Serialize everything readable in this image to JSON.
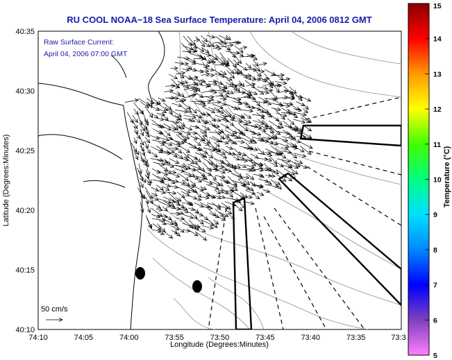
{
  "chart_data": {
    "type": "map",
    "title": "RU COOL  NOAA−18  Sea Surface Temperature:  April 04, 2006 0812 GMT",
    "annotation_lines": [
      "Raw Surface Current:",
      "April 04, 2006 07:00 GMT"
    ],
    "xlabel": "Longitude (Degrees:Minutes)",
    "ylabel": "Latitude (Degrees:Minutes)",
    "x_ticks": [
      "74:10",
      "74:05",
      "74:00",
      "73:55",
      "73:50",
      "73:45",
      "73:40",
      "73:35",
      "73:3"
    ],
    "y_ticks": [
      "40:35",
      "40:30",
      "40:25",
      "40:20",
      "40:15",
      "40:10"
    ],
    "xlim": [
      "74:10 W",
      "73:30 W"
    ],
    "ylim": [
      "40:10 N",
      "40:35 N"
    ],
    "scale_label": "50 cm/s",
    "colorbar": {
      "label": "Temperature (°C)",
      "ticks": [
        "5",
        "6",
        "7",
        "8",
        "9",
        "10",
        "11",
        "12",
        "13",
        "14",
        "15"
      ],
      "range": [
        5,
        15
      ],
      "colors": [
        "#ff80ff",
        "#7f3fbf",
        "#0000ff",
        "#0088ff",
        "#00e0ff",
        "#00ff80",
        "#40ff00",
        "#ffff00",
        "#ff9900",
        "#ff0000",
        "#8a0000"
      ]
    },
    "current_field": {
      "units": "cm/s",
      "region": {
        "lon": [
          "74:00 W",
          "73:40 W"
        ],
        "lat": [
          "40:19 N",
          "40:33 N"
        ]
      },
      "dominant_direction": "south-east",
      "typical_speed_cm_s": [
        10,
        35
      ]
    },
    "markers": [
      {
        "name": "buoy",
        "lon": "73:58.7 W",
        "lat": "40:14.6 N"
      },
      {
        "name": "buoy",
        "lon": "73:52.7 W",
        "lat": "40:13.5 N"
      }
    ],
    "grid": false
  }
}
